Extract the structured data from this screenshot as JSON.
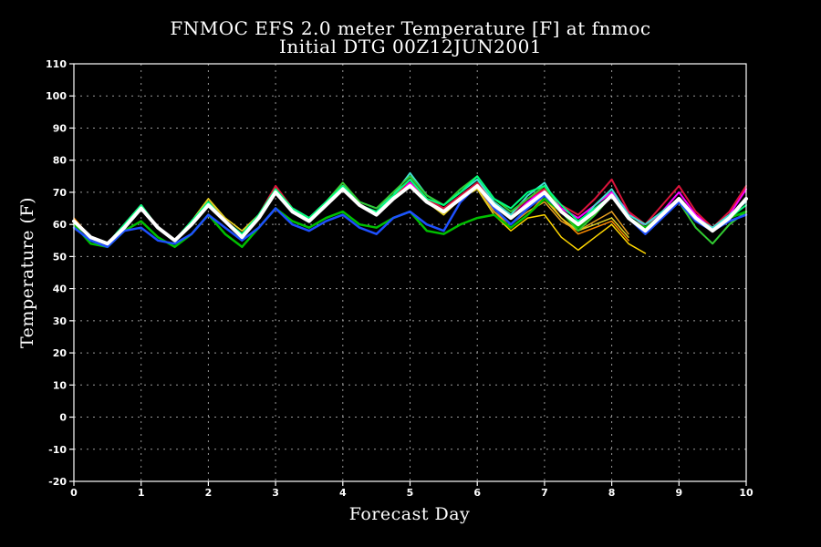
{
  "chart_data": {
    "type": "line",
    "title": "FNMOC EFS 2.0 meter Temperature [F] at fnmoc",
    "subtitle": "Initial DTG 00Z12JUN2001",
    "xlabel": "Forecast Day",
    "ylabel": "Temperature (F)",
    "xlim": [
      0,
      10
    ],
    "ylim": [
      -20,
      110
    ],
    "xticks": [
      0,
      1,
      2,
      3,
      4,
      5,
      6,
      7,
      8,
      9,
      10
    ],
    "yticks": [
      -20,
      -10,
      0,
      10,
      20,
      30,
      40,
      50,
      60,
      70,
      80,
      90,
      100,
      110
    ],
    "grid": true,
    "legend": "none",
    "x": [
      0,
      0.25,
      0.5,
      0.75,
      1,
      1.25,
      1.5,
      1.75,
      2,
      2.25,
      2.5,
      2.75,
      3,
      3.25,
      3.5,
      3.75,
      4,
      4.25,
      4.5,
      4.75,
      5,
      5.25,
      5.5,
      5.75,
      6,
      6.25,
      6.5,
      6.75,
      7,
      7.25,
      7.5,
      7.75,
      8,
      8.25,
      8.5,
      8.75,
      9,
      9.25,
      9.5,
      9.75,
      10
    ],
    "series": [
      {
        "color": "#ff8c00",
        "width": 1.5,
        "values": [
          62,
          56,
          54,
          60,
          66,
          59,
          55,
          61,
          68,
          61,
          57,
          63,
          71,
          65,
          62,
          67,
          72,
          66,
          64,
          69,
          74,
          67,
          64,
          68,
          72,
          64,
          59,
          63,
          69,
          62,
          57,
          59,
          61,
          55,
          null,
          null,
          null,
          null,
          null,
          null,
          null
        ]
      },
      {
        "color": "#ffd700",
        "width": 1.5,
        "values": [
          61,
          56,
          54,
          60,
          66,
          59,
          55,
          61,
          68,
          62,
          58,
          63,
          71,
          64,
          62,
          67,
          72,
          66,
          63,
          68,
          73,
          67,
          63,
          68,
          71,
          63,
          58,
          62,
          63,
          56,
          52,
          56,
          60,
          54,
          51,
          null,
          null,
          null,
          null,
          null,
          null
        ]
      },
      {
        "color": "#e8a020",
        "width": 1.5,
        "values": [
          61,
          56,
          54,
          60,
          66,
          59,
          55,
          61,
          68,
          62,
          58,
          63,
          71,
          64,
          62,
          67,
          72,
          66,
          63,
          68,
          73,
          67,
          63,
          68,
          71,
          64,
          60,
          64,
          67,
          61,
          58,
          61,
          64,
          57,
          null,
          null,
          null,
          null,
          null,
          null,
          null
        ]
      },
      {
        "color": "#e0d020",
        "width": 1.5,
        "values": [
          61,
          56,
          54,
          60,
          66,
          59,
          55,
          61,
          68,
          62,
          58,
          63,
          71,
          64,
          62,
          67,
          72,
          66,
          63,
          68,
          73,
          67,
          63,
          68,
          71,
          63,
          59,
          63,
          68,
          62,
          58,
          60,
          62,
          56,
          null,
          null,
          null,
          null,
          null,
          null,
          null
        ]
      },
      {
        "color": "#ff00ff",
        "width": 2,
        "values": [
          61,
          56,
          54,
          60,
          66,
          59,
          55,
          61,
          67,
          61,
          57,
          63,
          71,
          65,
          62,
          67,
          72,
          66,
          63,
          68,
          73,
          67,
          64,
          68,
          72,
          66,
          62,
          67,
          71,
          65,
          62,
          66,
          70,
          64,
          59,
          64,
          70,
          63,
          59,
          63,
          71
        ]
      },
      {
        "color": "#dc143c",
        "width": 2,
        "values": [
          61,
          56,
          54,
          60,
          66,
          59,
          55,
          61,
          67,
          61,
          57,
          63,
          72,
          65,
          62,
          67,
          73,
          66,
          63,
          68,
          74,
          68,
          65,
          69,
          73,
          67,
          63,
          68,
          71,
          66,
          63,
          68,
          74,
          64,
          60,
          66,
          72,
          64,
          59,
          64,
          72
        ]
      },
      {
        "color": "#40e0d0",
        "width": 2,
        "values": [
          61,
          56,
          54,
          60,
          66,
          59,
          55,
          61,
          67,
          61,
          57,
          63,
          71,
          65,
          62,
          67,
          72,
          67,
          65,
          69,
          76,
          69,
          66,
          70,
          74,
          67,
          63,
          69,
          73,
          64,
          60,
          66,
          71,
          63,
          60,
          64,
          68,
          62,
          59,
          63,
          67
        ]
      },
      {
        "color": "#32cd32",
        "width": 2,
        "values": [
          61,
          56,
          54,
          60,
          66,
          59,
          55,
          61,
          67,
          61,
          57,
          63,
          71,
          65,
          62,
          67,
          73,
          67,
          65,
          70,
          75,
          69,
          66,
          71,
          75,
          68,
          64,
          68,
          72,
          64,
          58,
          63,
          69,
          62,
          58,
          62,
          67,
          59,
          54,
          60,
          64
        ]
      },
      {
        "color": "#00ff7f",
        "width": 2,
        "values": [
          61,
          56,
          54,
          60,
          66,
          59,
          55,
          61,
          67,
          61,
          57,
          63,
          71,
          65,
          62,
          67,
          72,
          66,
          64,
          69,
          74,
          68,
          66,
          70,
          75,
          68,
          65,
          70,
          72,
          66,
          61,
          65,
          69,
          62,
          59,
          63,
          68,
          62,
          58,
          62,
          66
        ]
      },
      {
        "color": "#00c000",
        "width": 2.5,
        "values": [
          60,
          54,
          53,
          58,
          61,
          56,
          53,
          57,
          63,
          57,
          53,
          59,
          65,
          61,
          59,
          62,
          64,
          60,
          59,
          62,
          64,
          58,
          57,
          60,
          62,
          63,
          59,
          63,
          68,
          64,
          59,
          64,
          69,
          62,
          59,
          63,
          68,
          62,
          58,
          62,
          64
        ]
      },
      {
        "color": "#1e50ff",
        "width": 2.5,
        "values": [
          59,
          55,
          53,
          58,
          59,
          55,
          54,
          57,
          63,
          59,
          55,
          59,
          65,
          60,
          58,
          61,
          63,
          59,
          57,
          62,
          64,
          60,
          58,
          67,
          72,
          65,
          60,
          65,
          69,
          64,
          60,
          64,
          69,
          62,
          57,
          62,
          67,
          61,
          58,
          61,
          63
        ]
      },
      {
        "color": "#ffffff",
        "width": 4,
        "values": [
          61,
          56,
          54,
          59,
          65,
          59,
          55,
          60,
          66,
          61,
          56,
          62,
          70,
          64,
          61,
          66,
          71,
          66,
          63,
          68,
          72,
          67,
          64,
          68,
          72,
          66,
          62,
          66,
          70,
          64,
          60,
          64,
          69,
          62,
          58,
          63,
          68,
          62,
          58,
          62,
          68
        ]
      }
    ]
  }
}
